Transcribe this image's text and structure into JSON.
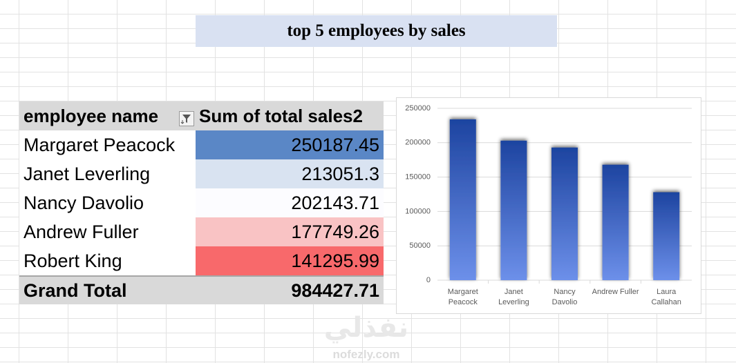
{
  "title": "top 5 employees by sales",
  "table": {
    "header": [
      "employee name",
      "Sum of total sales2"
    ],
    "rows": [
      [
        "Margaret Peacock",
        250187.45
      ],
      [
        "Janet Leverling",
        213051.3
      ],
      [
        "Nancy Davolio",
        202143.71
      ],
      [
        "Andrew Fuller",
        177749.26
      ],
      [
        "Robert King",
        141295.99
      ]
    ],
    "total": [
      "Grand Total",
      984427.71
    ]
  },
  "chart_data": {
    "type": "bar",
    "categories": [
      "Margaret Peacock",
      "Janet Leverling",
      "Nancy Davolio",
      "Andrew Fuller",
      "Laura Callahan"
    ],
    "values": [
      234000,
      203000,
      193000,
      168000,
      128000
    ],
    "ylim": [
      0,
      250000
    ],
    "yticks": [
      0,
      50000,
      100000,
      150000,
      200000,
      250000
    ],
    "grid": true
  },
  "watermark": {
    "arabic": "نفذلي",
    "site": "nofezly.com"
  }
}
